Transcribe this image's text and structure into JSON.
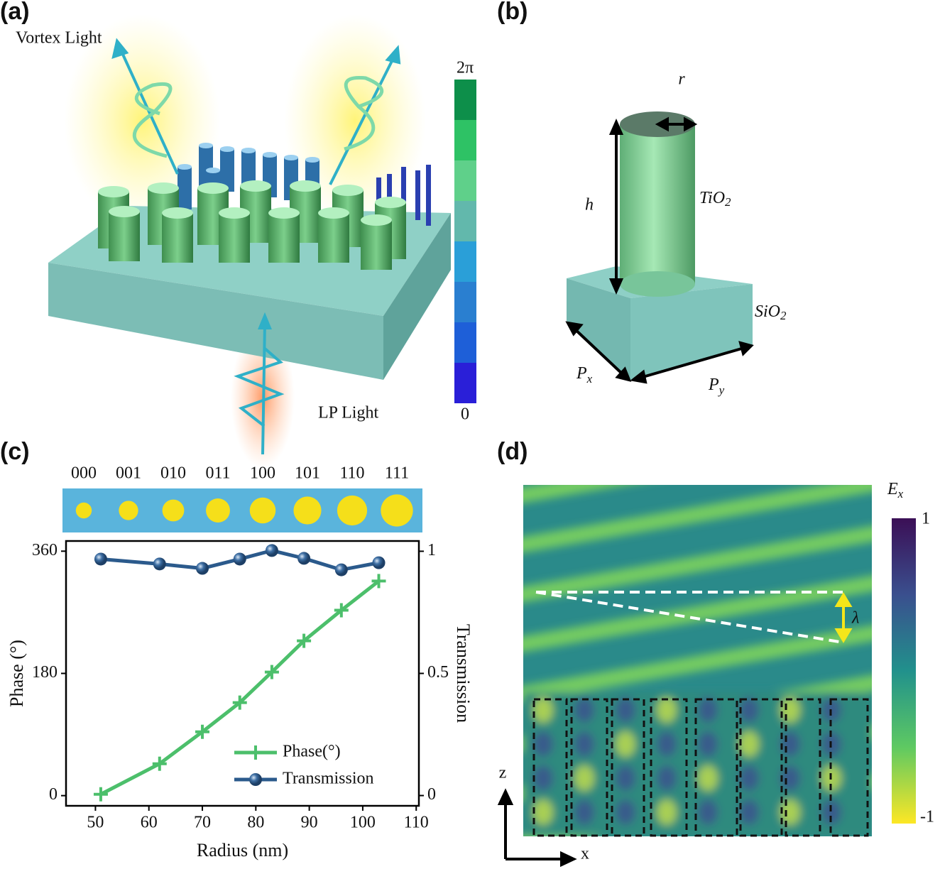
{
  "panels": {
    "a": {
      "label": "(a)",
      "vortex_light": "Vortex Light",
      "lp_light": "LP Light",
      "colorbar_max": "2π",
      "colorbar_min": "0"
    },
    "b": {
      "label": "(b)",
      "r": "r",
      "h": "h",
      "tio2": {
        "base": "TiO",
        "sub": "2"
      },
      "sio2": {
        "base": "SiO",
        "sub": "2"
      },
      "px": {
        "base": "P",
        "sub": "x"
      },
      "py": {
        "base": "P",
        "sub": "y"
      }
    },
    "c": {
      "label": "(c)",
      "codes": [
        "000",
        "001",
        "010",
        "011",
        "100",
        "101",
        "110",
        "111"
      ]
    },
    "d": {
      "label": "(d)",
      "field": {
        "base": "E",
        "sub": "x"
      },
      "colorbar_max": "1",
      "colorbar_min": "-1",
      "wavelength": "λ",
      "z_axis": "z",
      "x_axis": "x"
    }
  },
  "chart_data": {
    "type": "line",
    "xlabel": "Radius (nm)",
    "ylabel": "Phase (°)",
    "y2label": "Transmission",
    "x": [
      51,
      62,
      70,
      77,
      83,
      89,
      96,
      103
    ],
    "xlim": [
      44.5,
      110.5
    ],
    "xticks": [
      50,
      60,
      70,
      80,
      90,
      100,
      110
    ],
    "ylim": [
      -15,
      375
    ],
    "yticks": [
      0,
      180,
      360
    ],
    "y2lim": [
      -0.042,
      1.042
    ],
    "y2ticks": [
      0,
      0.5,
      1
    ],
    "series": [
      {
        "name": "Phase(°)",
        "color": "#4cbf6b",
        "marker": "plus",
        "values": [
          2,
          47,
          94,
          137,
          182,
          228,
          273,
          316
        ]
      },
      {
        "name": "Transmission",
        "color": "#2b5a8c",
        "marker": "circle",
        "axis": "y2",
        "values": [
          0.968,
          0.948,
          0.93,
          0.968,
          1.003,
          0.971,
          0.924,
          0.953
        ]
      }
    ],
    "legend": "lower right"
  }
}
